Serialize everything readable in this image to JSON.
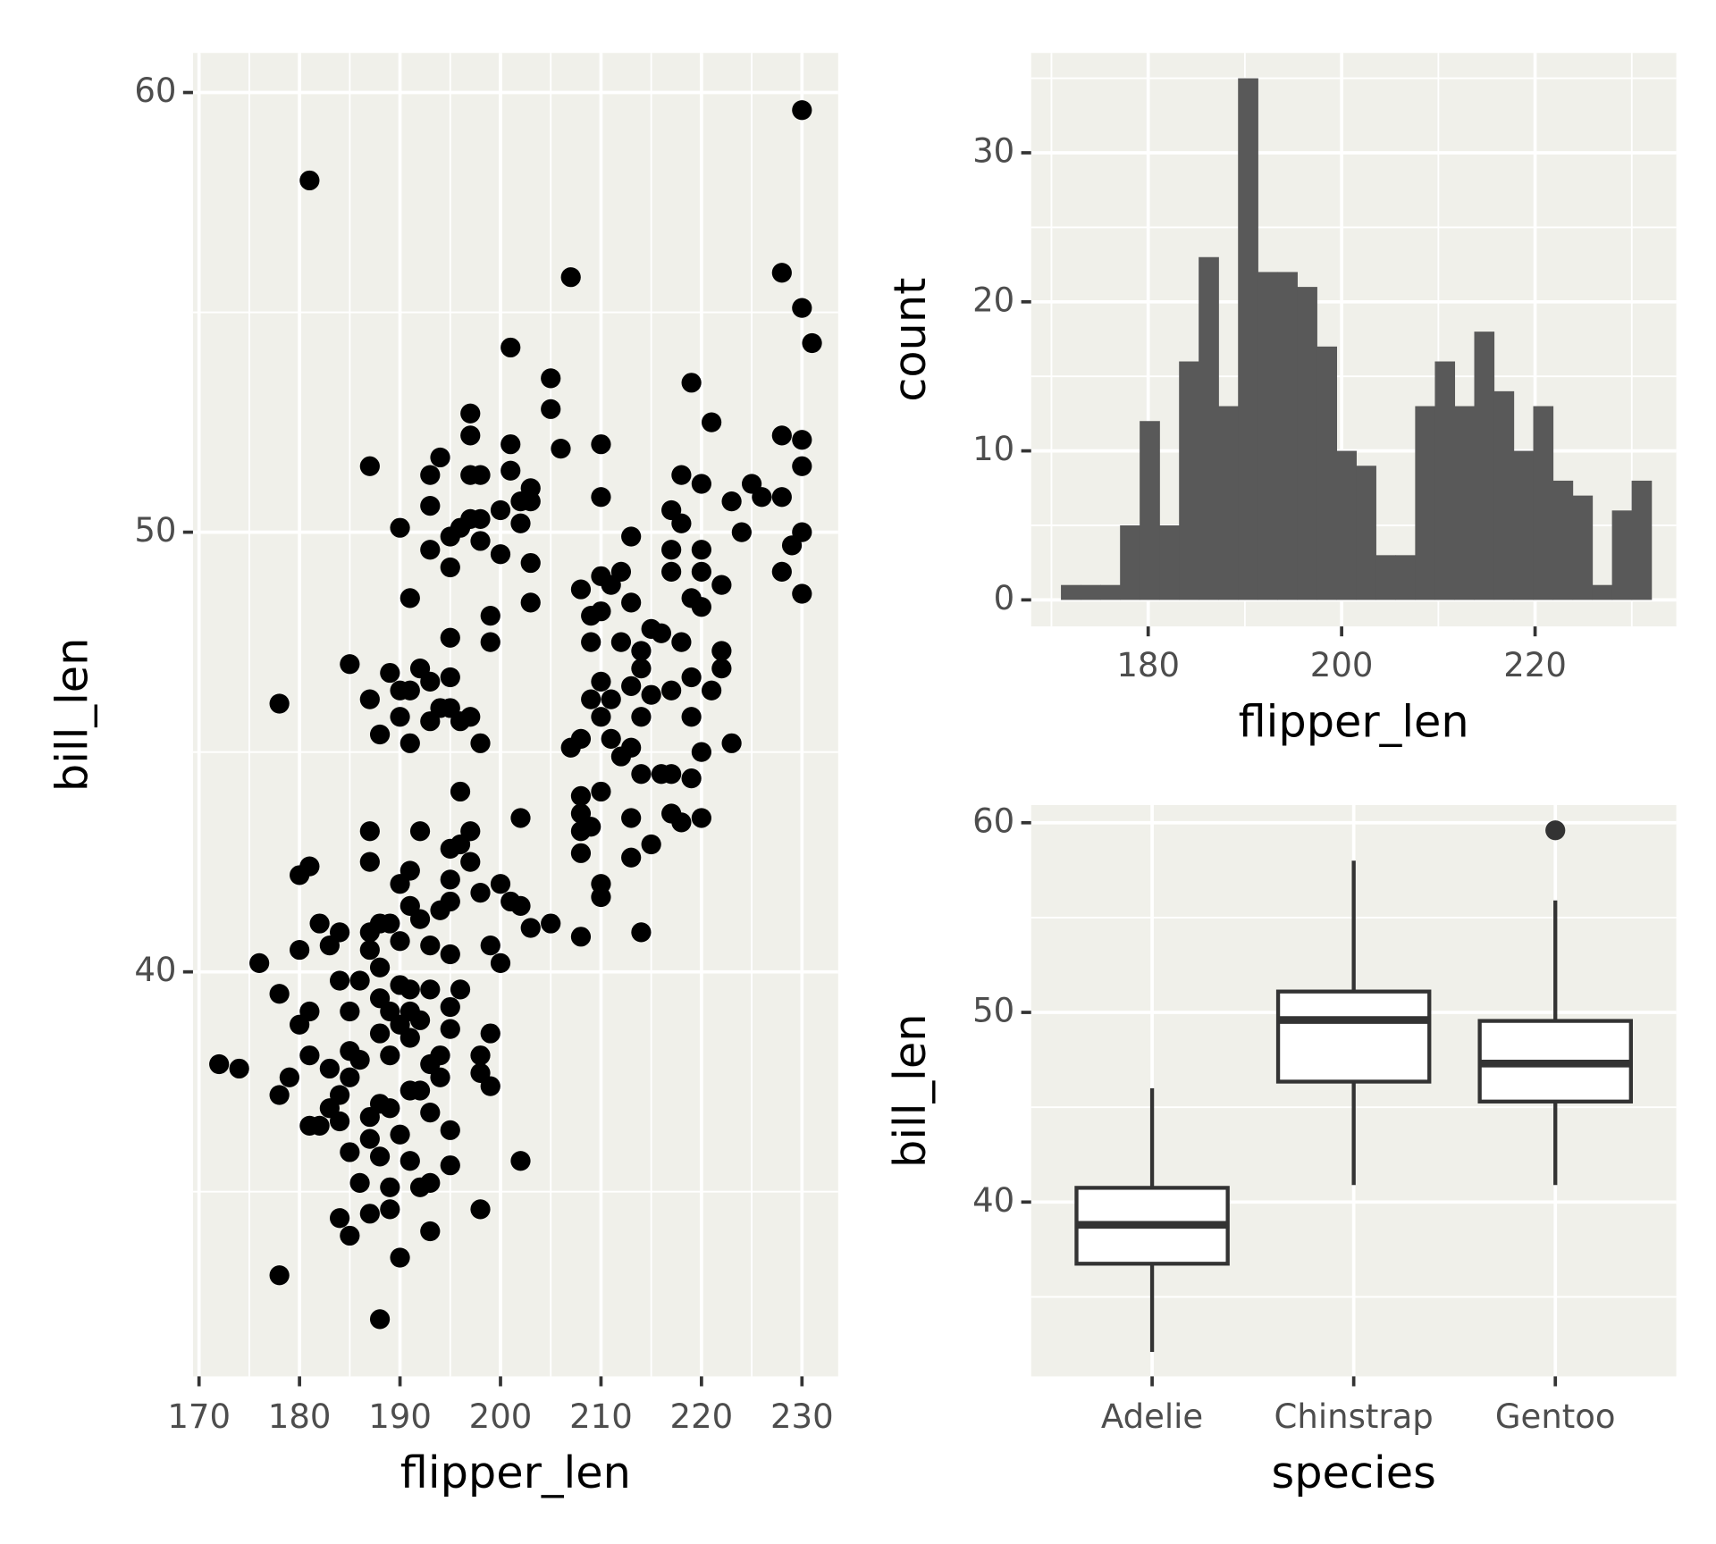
{
  "chart_data": [
    {
      "type": "scatter",
      "x_label": "flipper_len",
      "y_label": "bill_len",
      "color": "#000000",
      "grid": true,
      "xlim": [
        169.4,
        233.6
      ],
      "ylim": [
        30.8,
        60.9
      ],
      "xticks": [
        170,
        180,
        190,
        200,
        210,
        220,
        230
      ],
      "yticks": [
        40,
        50,
        60
      ],
      "x": [
        230,
        181,
        207,
        228,
        230,
        231,
        201,
        205,
        219,
        205,
        197,
        221,
        197,
        228,
        230,
        201,
        206,
        210,
        187,
        194,
        230,
        193,
        197,
        198,
        218,
        201,
        220,
        203,
        225,
        210,
        193,
        202,
        203,
        217,
        223,
        226,
        228,
        200,
        197,
        198,
        202,
        218,
        190,
        224,
        195,
        196,
        198,
        213,
        193,
        217,
        230,
        229,
        200,
        220,
        195,
        203,
        217,
        228,
        210,
        212,
        220,
        208,
        211,
        222,
        191,
        213,
        203,
        230,
        219,
        220,
        209,
        210,
        199,
        195,
        215,
        216,
        209,
        212,
        214,
        199,
        218,
        222,
        185,
        214,
        189,
        192,
        195,
        210,
        213,
        219,
        222,
        215,
        217,
        221,
        190,
        191,
        193,
        178,
        187,
        209,
        211,
        194,
        195,
        197,
        190,
        210,
        219,
        214,
        193,
        196,
        188,
        191,
        198,
        208,
        207,
        211,
        213,
        220,
        223,
        212,
        214,
        216,
        217,
        219,
        210,
        196,
        208,
        208,
        217,
        213,
        218,
        220,
        202,
        187,
        192,
        197,
        208,
        209,
        215,
        195,
        196,
        208,
        213,
        191,
        181,
        180,
        187,
        197,
        195,
        190,
        200,
        198,
        210,
        210,
        201,
        202,
        195,
        194,
        191,
        182,
        188,
        189,
        192,
        205,
        203,
        214,
        184,
        187,
        190,
        193,
        208,
        180,
        183,
        199,
        187,
        195,
        176,
        200,
        188,
        184,
        190,
        178,
        186,
        191,
        193,
        196,
        188,
        189,
        181,
        185,
        191,
        195,
        180,
        190,
        192,
        195,
        188,
        199,
        191,
        185,
        181,
        189,
        194,
        198,
        172,
        174,
        183,
        186,
        193,
        198,
        179,
        185,
        194,
        178,
        184,
        191,
        192,
        199,
        188,
        183,
        187,
        193,
        181,
        182,
        184,
        189,
        195,
        190,
        187,
        185,
        188,
        191,
        195,
        202,
        186,
        189,
        192,
        193,
        184,
        187,
        189,
        198,
        185,
        193,
        190,
        178,
        188
      ],
      "y": [
        59.6,
        58.0,
        55.8,
        55.9,
        55.1,
        54.3,
        54.2,
        53.5,
        53.4,
        52.8,
        52.7,
        52.5,
        52.2,
        52.2,
        52.1,
        52.0,
        51.9,
        52.0,
        51.5,
        51.7,
        51.5,
        51.3,
        51.3,
        51.3,
        51.3,
        51.4,
        51.1,
        51.0,
        51.1,
        50.8,
        50.6,
        50.7,
        50.7,
        50.5,
        50.7,
        50.8,
        50.8,
        50.5,
        50.3,
        50.3,
        50.2,
        50.2,
        50.1,
        50.0,
        49.9,
        50.1,
        49.8,
        49.9,
        49.6,
        49.6,
        50.0,
        49.7,
        49.5,
        49.6,
        49.2,
        49.3,
        49.1,
        49.1,
        49.0,
        49.1,
        49.1,
        48.7,
        48.8,
        48.8,
        48.5,
        48.4,
        48.4,
        48.6,
        48.5,
        48.3,
        48.1,
        48.2,
        48.1,
        47.6,
        47.8,
        47.7,
        47.5,
        47.5,
        47.3,
        47.5,
        47.5,
        47.3,
        47.0,
        46.9,
        46.8,
        46.9,
        46.7,
        46.6,
        46.5,
        46.7,
        46.9,
        46.3,
        46.4,
        46.4,
        46.4,
        46.4,
        46.6,
        46.1,
        46.2,
        46.2,
        46.2,
        46.0,
        46.0,
        45.8,
        45.8,
        45.8,
        45.8,
        45.8,
        45.7,
        45.7,
        45.4,
        45.2,
        45.2,
        45.3,
        45.1,
        45.3,
        45.1,
        45.0,
        45.2,
        44.9,
        44.5,
        44.5,
        44.5,
        44.4,
        44.1,
        44.1,
        44.0,
        43.6,
        43.6,
        43.5,
        43.4,
        43.5,
        43.5,
        43.2,
        43.2,
        43.2,
        43.2,
        43.3,
        42.9,
        42.8,
        42.9,
        42.7,
        42.6,
        42.3,
        42.4,
        42.2,
        42.5,
        42.5,
        42.1,
        42.0,
        42.0,
        41.8,
        42.0,
        41.7,
        41.6,
        41.5,
        41.6,
        41.4,
        41.5,
        41.1,
        41.1,
        41.1,
        41.2,
        41.1,
        41.0,
        40.9,
        40.9,
        40.9,
        40.7,
        40.6,
        40.8,
        40.5,
        40.6,
        40.6,
        40.5,
        40.4,
        40.2,
        40.2,
        40.1,
        39.8,
        39.7,
        39.5,
        39.8,
        39.6,
        39.6,
        39.6,
        39.4,
        39.1,
        39.1,
        39.1,
        39.1,
        39.2,
        38.8,
        38.8,
        38.9,
        38.7,
        38.6,
        38.6,
        38.5,
        38.2,
        38.1,
        38.1,
        38.1,
        38.1,
        37.9,
        37.8,
        37.8,
        38.0,
        37.9,
        37.7,
        37.6,
        37.6,
        37.6,
        37.2,
        37.2,
        37.3,
        37.3,
        37.4,
        37.0,
        36.9,
        36.7,
        36.8,
        36.5,
        36.5,
        36.6,
        36.9,
        36.4,
        36.3,
        36.2,
        35.9,
        35.8,
        35.7,
        35.6,
        35.7,
        35.2,
        35.1,
        35.1,
        35.2,
        34.4,
        34.5,
        34.6,
        34.6,
        34.0,
        34.1,
        33.5,
        33.1,
        32.1
      ]
    },
    {
      "type": "histogram",
      "x_label": "flipper_len",
      "y_label": "count",
      "color": "#595959",
      "grid": true,
      "xlim": [
        167.9,
        234.6
      ],
      "ylim": [
        -1.78,
        36.7
      ],
      "xticks": [
        180,
        200,
        220
      ],
      "yticks": [
        0,
        10,
        20,
        30
      ],
      "bins": [
        170.98,
        173.02,
        175.05,
        177.09,
        179.12,
        181.16,
        183.19,
        185.22,
        187.26,
        189.29,
        191.33,
        193.36,
        195.4,
        197.43,
        199.47,
        201.5,
        203.53,
        205.57,
        207.6,
        209.64,
        211.67,
        213.71,
        215.74,
        217.78,
        219.81,
        221.84,
        223.88,
        225.91,
        227.95,
        229.98,
        232.02
      ],
      "values": [
        1,
        1,
        1,
        5,
        12,
        5,
        16,
        23,
        13,
        35,
        22,
        22,
        21,
        17,
        10,
        9,
        3,
        3,
        13,
        16,
        13,
        18,
        14,
        10,
        13,
        8,
        7,
        1,
        6,
        8
      ]
    },
    {
      "type": "box",
      "x_label": "species",
      "y_label": "bill_len",
      "color": "#333333",
      "grid": true,
      "ylim": [
        30.81,
        60.93
      ],
      "yticks": [
        40,
        50,
        60
      ],
      "categories": [
        "Adelie",
        "Chinstrap",
        "Gentoo"
      ],
      "boxes": [
        {
          "whislo": 32.1,
          "q1": 36.75,
          "med": 38.8,
          "q3": 40.75,
          "whishi": 46.0,
          "fliers": []
        },
        {
          "whislo": 40.9,
          "q1": 46.35,
          "med": 49.6,
          "q3": 51.1,
          "whishi": 58.0,
          "fliers": []
        },
        {
          "whislo": 40.9,
          "q1": 45.3,
          "med": 47.3,
          "q3": 49.55,
          "whishi": 55.9,
          "fliers": [
            59.6
          ]
        }
      ]
    }
  ]
}
